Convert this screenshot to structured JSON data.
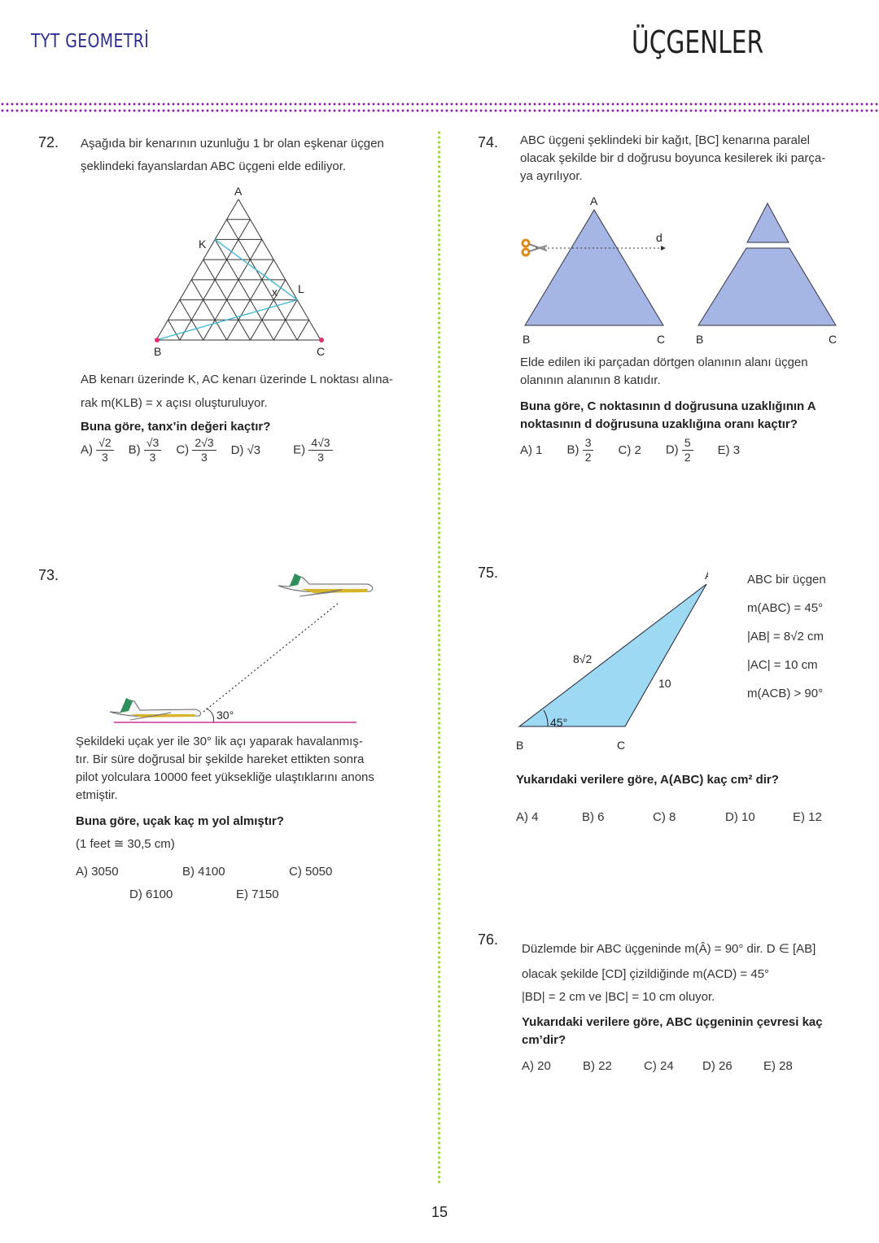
{
  "header": {
    "subject": "TYT GEOMETRİ",
    "topic": "ÜÇGENLER"
  },
  "page_number": "15",
  "q72": {
    "number": "72.",
    "intro": [
      "Aşağıda bir kenarının uzunluğu 1 br olan eşkenar üçgen",
      "şeklindeki fayanslardan ABC üçgeni elde ediliyor."
    ],
    "figure_labels": {
      "A": "A",
      "B": "B",
      "C": "C",
      "K": "K",
      "L": "L",
      "x": "x"
    },
    "body": [
      "AB kenarı üzerinde K, AC kenarı üzerinde L noktası alına-",
      "rak m(KLB) = x açısı oluşturuluyor."
    ],
    "question": "Buna göre, tanx’in değeri kaçtır?",
    "options": [
      {
        "label": "A)",
        "num": "√2",
        "den": "3"
      },
      {
        "label": "B)",
        "num": "√3",
        "den": "3"
      },
      {
        "label": "C)",
        "num": "2√3",
        "den": "3"
      },
      {
        "label": "D)",
        "value": "√3"
      },
      {
        "label": "E)",
        "num": "4√3",
        "den": "3"
      }
    ],
    "colors": {
      "line": "#3bb8d6",
      "point": "#e0306f"
    }
  },
  "q73": {
    "number": "73.",
    "angle_label": "30°",
    "body": [
      "Şekildeki uçak yer ile 30° lik açı yaparak havalanmış-",
      "tır. Bir süre doğrusal bir şekilde hareket ettikten sonra",
      "pilot yolculara 10000 feet yüksekliğe ulaştıklarını anons",
      "etmiştir."
    ],
    "question": "Buna göre, uçak kaç m yol almıştır?",
    "note": "(1 feet ≅ 30,5 cm)",
    "options": [
      "A) 3050",
      "B) 4100",
      "C) 5050",
      "D) 6100",
      "E) 7150"
    ],
    "colors": {
      "ground": "#d0309a"
    }
  },
  "q74": {
    "number": "74.",
    "intro": [
      "ABC üçgeni şeklindeki bir kağıt, [BC] kenarına paralel",
      "olacak şekilde bir d doğrusu boyunca kesilerek iki parça-",
      "ya ayrılıyor."
    ],
    "figure_labels": {
      "A": "A",
      "B": "B",
      "C": "C",
      "d": "d"
    },
    "body": [
      "Elde edilen iki parçadan dörtgen olanının alanı üçgen",
      "olanının alanının 8 katıdır."
    ],
    "question": [
      "Buna göre, C noktasının d doğrusuna uzaklığının A",
      "noktasının d doğrusuna uzaklığına oranı kaçtır?"
    ],
    "options": [
      {
        "label": "A) 1"
      },
      {
        "label": "B)",
        "num": "3",
        "den": "2"
      },
      {
        "label": "C) 2"
      },
      {
        "label": "D)",
        "num": "5",
        "den": "2"
      },
      {
        "label": "E) 3"
      }
    ],
    "colors": {
      "fill": "#a6b6e4"
    }
  },
  "q75": {
    "number": "75.",
    "figure_labels": {
      "A": "A",
      "B": "B",
      "C": "C",
      "AB": "8√2",
      "AC": "10",
      "angle": "45°"
    },
    "givens": [
      "ABC bir üçgen",
      "m(ABC) = 45°",
      "|AB| = 8√2 cm",
      "|AC| = 10 cm",
      "m(ACB) > 90°"
    ],
    "question": "Yukarıdaki verilere göre, A(ABC) kaç cm² dir?",
    "options": [
      "A) 4",
      "B) 6",
      "C) 8",
      "D) 10",
      "E) 12"
    ],
    "colors": {
      "fill": "#9dd9f3"
    }
  },
  "q76": {
    "number": "76.",
    "body": [
      "Düzlemde bir ABC üçgeninde m(Â) = 90° dir. D ∈ [AB]",
      "olacak şekilde [CD] çizildiğinde m(ACD) = 45°",
      "|BD| = 2 cm ve |BC| = 10 cm oluyor."
    ],
    "question": [
      "Yukarıdaki verilere göre, ABC üçgeninin çevresi kaç",
      "cm’dir?"
    ],
    "options": [
      "A) 20",
      "B) 22",
      "C) 24",
      "D) 26",
      "E) 28"
    ]
  }
}
